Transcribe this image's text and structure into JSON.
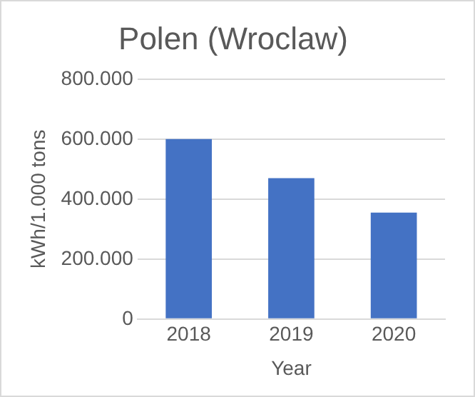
{
  "chart_data": {
    "type": "bar",
    "title": "Polen (Wroclaw)",
    "xlabel": "Year",
    "ylabel": "kWh/1.000 tons",
    "categories": [
      "2018",
      "2019",
      "2020"
    ],
    "values": [
      600000,
      470000,
      355000
    ],
    "color": "#4472c4",
    "ylim": [
      0,
      800000
    ],
    "yticks": [
      {
        "value": 0,
        "label": "0"
      },
      {
        "value": 200000,
        "label": "200.000"
      },
      {
        "value": 400000,
        "label": "400.000"
      },
      {
        "value": 600000,
        "label": "600.000"
      },
      {
        "value": 800000,
        "label": "800.000"
      }
    ],
    "grid": "y",
    "legend": false
  }
}
